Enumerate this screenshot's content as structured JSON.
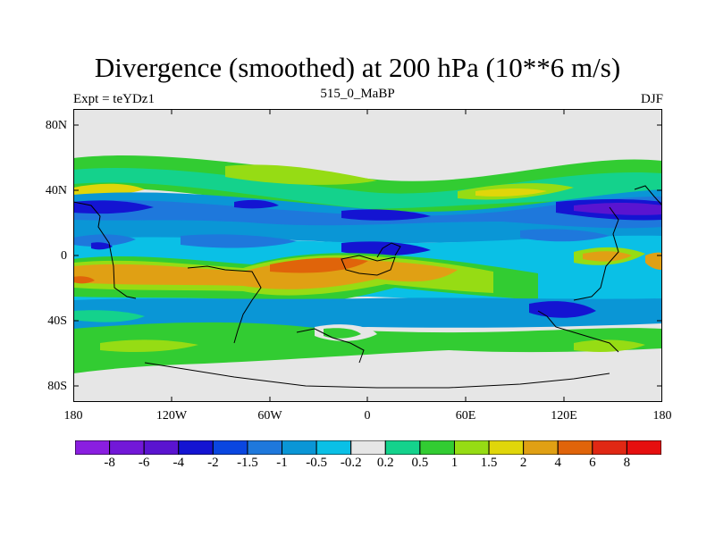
{
  "title": "Divergence (smoothed) at 200 hPa (10**6 m/s)",
  "subtitle_left": "Expt = teYDz1",
  "subtitle_center": "515_0_MaBP",
  "subtitle_right": "DJF",
  "map": {
    "projection": "cylindrical-equidistant",
    "lon_range": [
      -180,
      180
    ],
    "lat_range": [
      -90,
      90
    ],
    "y_tick_labels": [
      "80N",
      "40N",
      "0",
      "40S",
      "80S"
    ],
    "y_tick_values": [
      80,
      40,
      0,
      -40,
      -80
    ],
    "x_tick_labels": [
      "180",
      "120W",
      "60W",
      "0",
      "60E",
      "120E",
      "180"
    ],
    "x_tick_values": [
      -180,
      -120,
      -60,
      0,
      60,
      120,
      180
    ],
    "background_color": "#e6e6e6"
  },
  "colorbar": {
    "labels": [
      "-8",
      "-6",
      "-4",
      "-2",
      "-1.5",
      "-1",
      "-0.5",
      "-0.2",
      "0.2",
      "0.5",
      "1",
      "1.5",
      "2",
      "4",
      "6",
      "8"
    ],
    "colors": [
      "#8a1ee0",
      "#7218d8",
      "#5a14d0",
      "#1414d2",
      "#0a46e0",
      "#1e78dc",
      "#0a96d6",
      "#0ac0e6",
      "#e6e6e6",
      "#14d28c",
      "#32cc32",
      "#96dc14",
      "#e0d60a",
      "#e0a014",
      "#e0640a",
      "#e02814",
      "#e60f0f"
    ]
  }
}
